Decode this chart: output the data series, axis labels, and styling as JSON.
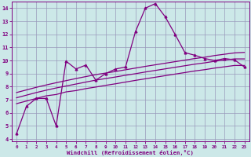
{
  "title": "",
  "xlabel": "Windchill (Refroidissement éolien,°C)",
  "bg_color": "#cce8e8",
  "line_color": "#800080",
  "grid_color": "#9999bb",
  "xlim": [
    -0.5,
    23.5
  ],
  "ylim": [
    3.8,
    14.5
  ],
  "yticks": [
    4,
    5,
    6,
    7,
    8,
    9,
    10,
    11,
    12,
    13,
    14
  ],
  "xticks": [
    0,
    1,
    2,
    3,
    4,
    5,
    6,
    7,
    8,
    9,
    10,
    11,
    12,
    13,
    14,
    15,
    16,
    17,
    18,
    19,
    20,
    21,
    22,
    23
  ],
  "main_curve_x": [
    0,
    1,
    2,
    3,
    4,
    5,
    6,
    7,
    8,
    9,
    10,
    11,
    12,
    13,
    14,
    15,
    16,
    17,
    18,
    19,
    20,
    21,
    22,
    23
  ],
  "main_curve_y": [
    4.4,
    6.5,
    7.1,
    7.1,
    5.0,
    9.95,
    9.35,
    9.65,
    8.5,
    9.0,
    9.35,
    9.5,
    12.2,
    14.0,
    14.35,
    13.35,
    12.0,
    10.6,
    10.4,
    10.15,
    10.0,
    10.15,
    10.05,
    9.5
  ],
  "line1_x": [
    0,
    1,
    2,
    3,
    4,
    5,
    6,
    7,
    8,
    9,
    10,
    11,
    12,
    13,
    14,
    15,
    16,
    17,
    18,
    19,
    20,
    21,
    22,
    23
  ],
  "line1_y": [
    6.7,
    6.9,
    7.1,
    7.3,
    7.4,
    7.6,
    7.7,
    7.85,
    7.97,
    8.1,
    8.22,
    8.35,
    8.48,
    8.6,
    8.72,
    8.84,
    8.96,
    9.08,
    9.2,
    9.3,
    9.42,
    9.52,
    9.62,
    9.62
  ],
  "line2_x": [
    0,
    1,
    2,
    3,
    4,
    5,
    6,
    7,
    8,
    9,
    10,
    11,
    12,
    13,
    14,
    15,
    16,
    17,
    18,
    19,
    20,
    21,
    22,
    23
  ],
  "line2_y": [
    7.15,
    7.35,
    7.55,
    7.73,
    7.9,
    8.05,
    8.2,
    8.35,
    8.5,
    8.62,
    8.74,
    8.87,
    8.99,
    9.12,
    9.24,
    9.36,
    9.48,
    9.6,
    9.72,
    9.82,
    9.94,
    10.04,
    10.12,
    10.12
  ],
  "line3_x": [
    0,
    1,
    2,
    3,
    4,
    5,
    6,
    7,
    8,
    9,
    10,
    11,
    12,
    13,
    14,
    15,
    16,
    17,
    18,
    19,
    20,
    21,
    22,
    23
  ],
  "line3_y": [
    7.55,
    7.75,
    7.95,
    8.13,
    8.3,
    8.46,
    8.62,
    8.77,
    8.92,
    9.04,
    9.16,
    9.29,
    9.42,
    9.55,
    9.67,
    9.79,
    9.91,
    10.03,
    10.15,
    10.25,
    10.38,
    10.48,
    10.58,
    10.62
  ]
}
